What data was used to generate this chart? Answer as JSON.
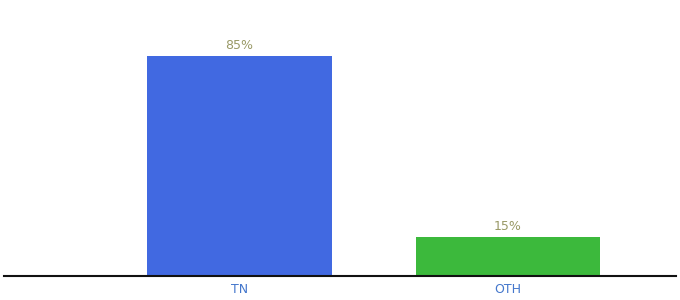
{
  "categories": [
    "TN",
    "OTH"
  ],
  "values": [
    85,
    15
  ],
  "bar_colors": [
    "#4169E1",
    "#3CB93C"
  ],
  "label_texts": [
    "85%",
    "15%"
  ],
  "label_color": "#999966",
  "label_fontsize": 9,
  "tick_fontsize": 9,
  "tick_color": "#4477cc",
  "background_color": "#ffffff",
  "bar_width": 0.55,
  "xlim": [
    -0.2,
    1.8
  ],
  "ylim": [
    0,
    105
  ],
  "spine_color": "#111111",
  "x_positions": [
    0.5,
    1.3
  ]
}
